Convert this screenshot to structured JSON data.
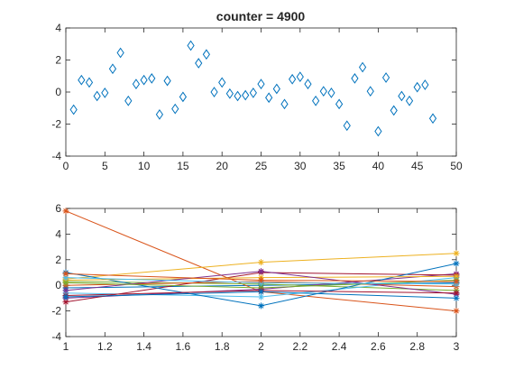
{
  "chart_data": [
    {
      "type": "scatter",
      "title": "counter = 4900",
      "xlabel": "",
      "ylabel": "",
      "xlim": [
        0,
        50
      ],
      "ylim": [
        -4,
        4
      ],
      "xticks": [
        0,
        5,
        10,
        15,
        20,
        25,
        30,
        35,
        40,
        45,
        50
      ],
      "yticks": [
        -4,
        -2,
        0,
        2,
        4
      ],
      "grid": false,
      "marker": "diamond",
      "color": "#0072BD",
      "x": [
        1,
        2,
        3,
        4,
        5,
        6,
        7,
        8,
        9,
        10,
        11,
        12,
        13,
        14,
        15,
        16,
        17,
        18,
        19,
        20,
        21,
        22,
        23,
        24,
        25,
        26,
        27,
        28,
        29,
        30,
        31,
        32,
        33,
        34,
        35,
        36,
        37,
        38,
        39,
        40,
        41,
        42,
        43,
        44,
        45,
        46,
        47
      ],
      "y": [
        -1.1,
        0.75,
        0.6,
        -0.25,
        -0.05,
        1.45,
        2.45,
        -0.55,
        0.5,
        0.75,
        0.85,
        -1.4,
        0.7,
        -1.05,
        -0.3,
        2.9,
        1.8,
        2.35,
        0.0,
        0.6,
        -0.1,
        -0.25,
        -0.2,
        -0.05,
        0.5,
        -0.35,
        0.2,
        -0.75,
        0.8,
        0.95,
        0.5,
        -0.55,
        0.05,
        -0.05,
        -0.75,
        -2.1,
        0.85,
        1.55,
        0.05,
        -2.45,
        0.9,
        -1.15,
        -0.25,
        -0.55,
        0.3,
        0.45,
        -1.65
      ]
    },
    {
      "type": "line",
      "title": "",
      "xlabel": "",
      "ylabel": "",
      "xlim": [
        1,
        3
      ],
      "ylim": [
        -4,
        6
      ],
      "xticks": [
        1,
        1.2,
        1.4,
        1.6,
        1.8,
        2,
        2.2,
        2.4,
        2.6,
        2.8,
        3
      ],
      "yticks": [
        -4,
        -2,
        0,
        2,
        4,
        6
      ],
      "grid": false,
      "marker": "star",
      "x": [
        1,
        2,
        3
      ],
      "series": [
        {
          "color": "#0072BD",
          "values": [
            -0.2,
            0.0,
            0.2
          ]
        },
        {
          "color": "#D95319",
          "values": [
            5.8,
            -0.5,
            -2.0
          ]
        },
        {
          "color": "#EDB120",
          "values": [
            0.5,
            1.8,
            2.5
          ]
        },
        {
          "color": "#7E2F8E",
          "values": [
            -1.0,
            -0.3,
            0.9
          ]
        },
        {
          "color": "#77AC30",
          "values": [
            0.3,
            0.1,
            -0.4
          ]
        },
        {
          "color": "#4DBEEE",
          "values": [
            -0.6,
            -0.9,
            0.6
          ]
        },
        {
          "color": "#A2142F",
          "values": [
            -1.3,
            1.0,
            0.8
          ]
        },
        {
          "color": "#0072BD",
          "values": [
            1.0,
            -1.6,
            1.7
          ]
        },
        {
          "color": "#D95319",
          "values": [
            0.0,
            0.3,
            -0.1
          ]
        },
        {
          "color": "#EDB120",
          "values": [
            0.4,
            0.6,
            0.7
          ]
        },
        {
          "color": "#7E2F8E",
          "values": [
            -0.4,
            1.1,
            -0.7
          ]
        },
        {
          "color": "#77AC30",
          "values": [
            0.2,
            -0.2,
            0.4
          ]
        },
        {
          "color": "#4DBEEE",
          "values": [
            0.6,
            0.2,
            0.1
          ]
        },
        {
          "color": "#A2142F",
          "values": [
            -0.8,
            -0.4,
            -0.6
          ]
        },
        {
          "color": "#0072BD",
          "values": [
            -0.9,
            -0.5,
            -1.0
          ]
        },
        {
          "color": "#D95319",
          "values": [
            0.9,
            0.4,
            0.3
          ]
        }
      ]
    }
  ]
}
